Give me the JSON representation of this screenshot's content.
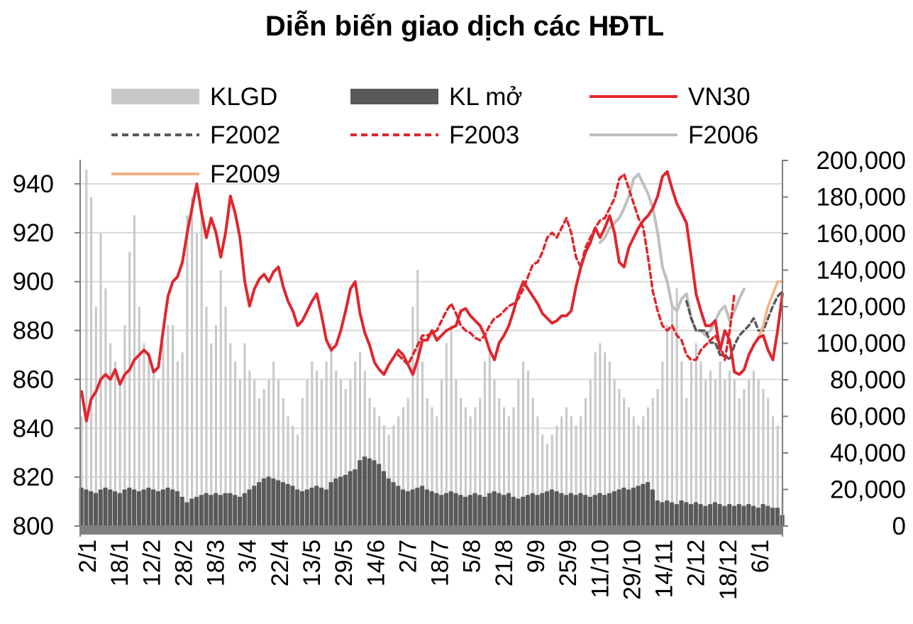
{
  "chart_data": {
    "type": "line",
    "title": "Diễn biến giao dịch các HĐTL",
    "x_tick_labels": [
      "2/1",
      "18/1",
      "12/2",
      "28/2",
      "18/3",
      "3/4",
      "22/4",
      "13/5",
      "29/5",
      "14/6",
      "2/7",
      "18/7",
      "5/8",
      "21/8",
      "9/9",
      "25/9",
      "11/10",
      "29/10",
      "14/11",
      "2/12",
      "18/12",
      "6/1"
    ],
    "y_left": {
      "ticks": [
        "800",
        "820",
        "840",
        "860",
        "880",
        "900",
        "920",
        "940"
      ],
      "range": [
        800,
        950
      ]
    },
    "y_right": {
      "ticks": [
        "0",
        "20,000",
        "40,000",
        "60,000",
        "80,000",
        "100,000",
        "120,000",
        "140,000",
        "160,000",
        "180,000",
        "200,000"
      ],
      "range": [
        0,
        200000
      ]
    },
    "grid": true,
    "legend_position": "top",
    "legend": [
      {
        "key": "klgd",
        "label": "KLGD",
        "color": "#c8c8c8",
        "style": "bar"
      },
      {
        "key": "klmo",
        "label": "KL mở",
        "color": "#595959",
        "style": "bar"
      },
      {
        "key": "vn30",
        "label": "VN30",
        "color": "#e0262d",
        "style": "solid"
      },
      {
        "key": "f2002",
        "label": "F2002",
        "color": "#595959",
        "style": "dashed"
      },
      {
        "key": "f2003",
        "label": "F2003",
        "color": "#e0262d",
        "style": "dashed"
      },
      {
        "key": "f2006",
        "label": "F2006",
        "color": "#bfbfbf",
        "style": "solid"
      },
      {
        "key": "f2009",
        "label": "F2009",
        "color": "#f4b183",
        "style": "solid"
      }
    ],
    "series": {
      "vn30": {
        "name": "VN30",
        "axis": "left",
        "start_index": 0,
        "values": [
          855,
          843,
          852,
          855,
          860,
          862,
          860,
          864,
          858,
          862,
          864,
          868,
          870,
          872,
          870,
          863,
          865,
          880,
          894,
          900,
          902,
          908,
          920,
          930,
          940,
          928,
          918,
          926,
          920,
          910,
          920,
          935,
          928,
          918,
          900,
          890,
          897,
          901,
          903,
          900,
          904,
          906,
          898,
          892,
          888,
          882,
          884,
          888,
          892,
          895,
          886,
          876,
          872,
          874,
          880,
          888,
          897,
          900,
          887,
          879,
          874,
          867,
          864,
          862,
          866,
          869,
          872,
          870,
          866,
          862,
          868,
          876,
          876,
          880,
          876,
          878,
          880,
          881,
          882,
          888,
          889,
          886,
          884,
          882,
          878,
          872,
          868,
          875,
          878,
          882,
          888,
          895,
          900,
          897,
          894,
          891,
          887,
          885,
          883,
          884,
          886,
          886,
          888,
          898,
          906,
          912,
          916,
          922,
          918,
          922,
          927,
          920,
          908,
          906,
          914,
          918,
          922,
          925,
          927,
          930,
          935,
          943,
          945,
          938,
          932,
          928,
          924,
          910,
          895,
          888,
          882,
          882,
          884,
          872,
          880,
          876,
          863,
          862,
          864,
          870,
          874,
          877,
          878,
          872,
          868,
          880,
          895
        ]
      },
      "f2002": {
        "name": "F2002",
        "axis": "left",
        "start_index": 126,
        "values": [
          892,
          885,
          880,
          880,
          880,
          875,
          875,
          870,
          870,
          868,
          874,
          878,
          880,
          882,
          885,
          880,
          880,
          885,
          890,
          894,
          896
        ]
      },
      "f2003": {
        "name": "F2003",
        "axis": "left",
        "start_index": 66,
        "values": [
          870,
          868,
          866,
          870,
          874,
          878,
          878,
          879,
          880,
          884,
          888,
          891,
          887,
          882,
          880,
          879,
          877,
          876,
          878,
          882,
          885,
          886,
          888,
          890,
          891,
          893,
          897,
          902,
          907,
          908,
          912,
          918,
          920,
          918,
          922,
          926,
          920,
          910,
          906,
          914,
          918,
          922,
          925,
          926,
          930,
          934,
          942,
          944,
          938,
          932,
          926,
          922,
          910,
          896,
          888,
          882,
          880,
          882,
          878,
          876,
          870,
          868,
          868,
          872,
          874,
          876,
          878,
          874,
          868,
          880,
          895
        ]
      },
      "f2006": {
        "name": "F2006",
        "axis": "left",
        "start_index": 108,
        "values": [
          916,
          918,
          922,
          924,
          926,
          930,
          935,
          942,
          944,
          940,
          936,
          930,
          920,
          906,
          900,
          890,
          888,
          893,
          895,
          885,
          880,
          880,
          878,
          880,
          884,
          888,
          890,
          884,
          888,
          893,
          897
        ]
      },
      "f2009": {
        "name": "F2009",
        "axis": "left",
        "start_index": 140,
        "values": [
          874,
          877,
          882,
          890,
          895,
          900,
          900
        ]
      },
      "klgd": {
        "name": "KLGD",
        "axis": "right",
        "values": [
          60000,
          195000,
          180000,
          120000,
          160000,
          130000,
          100000,
          90000,
          80000,
          110000,
          150000,
          170000,
          120000,
          100000,
          95000,
          85000,
          80000,
          100000,
          110000,
          110000,
          90000,
          95000,
          170000,
          180000,
          160000,
          170000,
          120000,
          100000,
          110000,
          140000,
          120000,
          100000,
          90000,
          80000,
          100000,
          85000,
          80000,
          70000,
          75000,
          80000,
          90000,
          80000,
          70000,
          60000,
          55000,
          50000,
          70000,
          80000,
          90000,
          85000,
          80000,
          90000,
          100000,
          85000,
          80000,
          75000,
          80000,
          90000,
          95000,
          85000,
          70000,
          65000,
          60000,
          55000,
          50000,
          55000,
          60000,
          65000,
          70000,
          120000,
          140000,
          90000,
          70000,
          65000,
          60000,
          80000,
          100000,
          110000,
          80000,
          70000,
          65000,
          60000,
          65000,
          70000,
          90000,
          95000,
          80000,
          70000,
          65000,
          60000,
          65000,
          80000,
          90000,
          85000,
          70000,
          60000,
          50000,
          45000,
          50000,
          55000,
          60000,
          65000,
          60000,
          55000,
          60000,
          70000,
          80000,
          95000,
          100000,
          95000,
          90000,
          80000,
          75000,
          70000,
          65000,
          60000,
          55000,
          60000,
          65000,
          70000,
          75000,
          90000,
          110000,
          120000,
          130000,
          90000,
          70000,
          90000,
          100000,
          90000,
          80000,
          85000,
          80000,
          90000,
          80000,
          85000,
          80000,
          70000,
          75000,
          80000,
          85000,
          80000,
          75000,
          70000,
          60000,
          55000,
          20000
        ]
      },
      "klmo": {
        "name": "KL mở",
        "axis": "right",
        "values": [
          21000,
          20000,
          19000,
          18000,
          20000,
          21000,
          20000,
          19000,
          18000,
          20000,
          21000,
          20000,
          19000,
          20000,
          21000,
          20000,
          19000,
          20000,
          21000,
          20000,
          19000,
          16000,
          13000,
          15000,
          16000,
          17000,
          18000,
          17000,
          18000,
          17000,
          18000,
          18000,
          17000,
          16000,
          18000,
          20000,
          22000,
          24000,
          26000,
          27000,
          26000,
          25000,
          24000,
          23000,
          22000,
          20000,
          19000,
          20000,
          21000,
          22000,
          21000,
          20000,
          24000,
          26000,
          27000,
          28000,
          30000,
          31000,
          36000,
          38000,
          37000,
          36000,
          34000,
          30000,
          26000,
          24000,
          22000,
          20000,
          19000,
          20000,
          21000,
          22000,
          20000,
          19000,
          18000,
          17000,
          18000,
          19000,
          18000,
          17000,
          16000,
          17000,
          18000,
          17000,
          16000,
          18000,
          19000,
          18000,
          17000,
          18000,
          16000,
          15000,
          16000,
          17000,
          18000,
          17000,
          18000,
          19000,
          20000,
          19000,
          18000,
          17000,
          18000,
          17000,
          18000,
          17000,
          16000,
          17000,
          18000,
          17000,
          18000,
          19000,
          20000,
          21000,
          20000,
          21000,
          22000,
          23000,
          24000,
          20000,
          14000,
          13000,
          14000,
          13000,
          12000,
          14000,
          13000,
          12000,
          13000,
          12000,
          11000,
          12000,
          13000,
          12000,
          11000,
          12000,
          11000,
          12000,
          11000,
          12000,
          11000,
          10000,
          12000,
          11000,
          10000,
          10000,
          6000
        ]
      }
    }
  }
}
